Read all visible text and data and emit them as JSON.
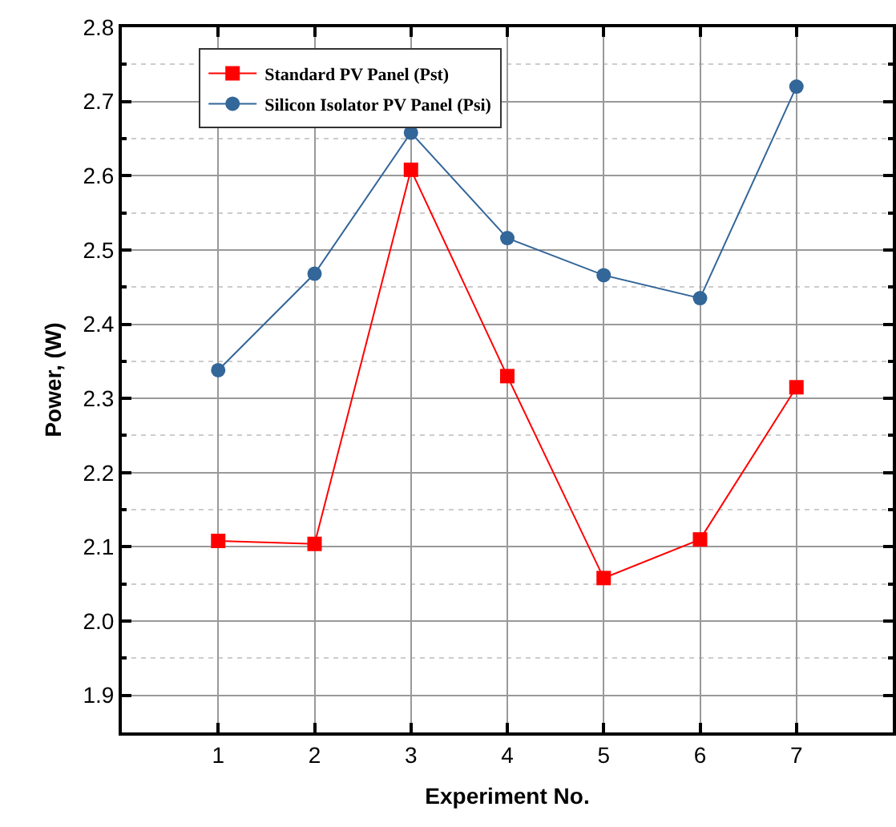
{
  "chart_data": {
    "type": "line",
    "xlabel": "Experiment No.",
    "ylabel": "Power, (W)",
    "x": [
      1,
      2,
      3,
      4,
      5,
      6,
      7
    ],
    "series": [
      {
        "name": "Standard PV Panel (Pst)",
        "color": "#ff0000",
        "marker": "square",
        "values": [
          2.108,
          2.104,
          2.608,
          2.33,
          2.058,
          2.11,
          2.315
        ]
      },
      {
        "name": "Silicon Isolator PV Panel (Psi)",
        "color": "#336699",
        "marker": "circle",
        "values": [
          2.338,
          2.468,
          2.658,
          2.516,
          2.466,
          2.435,
          2.72
        ]
      }
    ],
    "xlim": [
      0,
      8
    ],
    "xticks": [
      1,
      2,
      3,
      4,
      5,
      6,
      7
    ],
    "ylim": [
      1.85,
      2.8
    ],
    "yticks": [
      1.9,
      {
        "value": 2,
        "label": "2.0"
      },
      2.1,
      2.2,
      2.3,
      2.4,
      2.5,
      2.6,
      2.7,
      2.8
    ],
    "grid": true,
    "legend": "top left",
    "line_style": "solid"
  }
}
